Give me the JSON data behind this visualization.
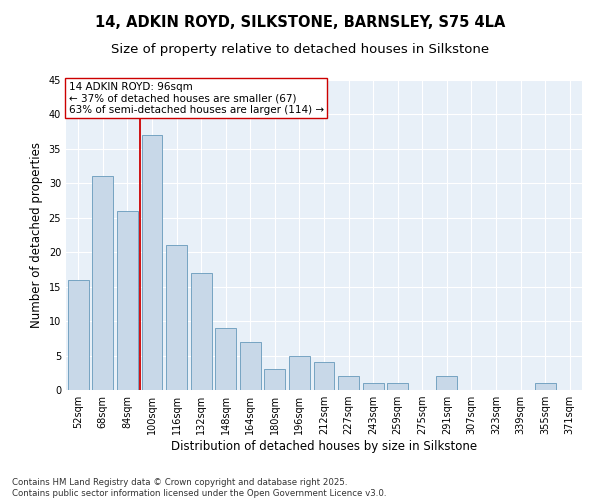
{
  "title_line1": "14, ADKIN ROYD, SILKSTONE, BARNSLEY, S75 4LA",
  "title_line2": "Size of property relative to detached houses in Silkstone",
  "xlabel": "Distribution of detached houses by size in Silkstone",
  "ylabel": "Number of detached properties",
  "categories": [
    "52sqm",
    "68sqm",
    "84sqm",
    "100sqm",
    "116sqm",
    "132sqm",
    "148sqm",
    "164sqm",
    "180sqm",
    "196sqm",
    "212sqm",
    "227sqm",
    "243sqm",
    "259sqm",
    "275sqm",
    "291sqm",
    "307sqm",
    "323sqm",
    "339sqm",
    "355sqm",
    "371sqm"
  ],
  "values": [
    16,
    31,
    26,
    37,
    21,
    17,
    9,
    7,
    3,
    5,
    4,
    2,
    1,
    1,
    0,
    2,
    0,
    0,
    0,
    1,
    0
  ],
  "bar_color": "#c8d8e8",
  "bar_edge_color": "#6699bb",
  "vline_index": 3,
  "vline_color": "#cc0000",
  "annotation_text": "14 ADKIN ROYD: 96sqm\n← 37% of detached houses are smaller (67)\n63% of semi-detached houses are larger (114) →",
  "annotation_box_color": "#ffffff",
  "annotation_box_edge": "#cc0000",
  "ylim": [
    0,
    45
  ],
  "yticks": [
    0,
    5,
    10,
    15,
    20,
    25,
    30,
    35,
    40,
    45
  ],
  "bg_color": "#e8f0f8",
  "grid_color": "#ffffff",
  "footer": "Contains HM Land Registry data © Crown copyright and database right 2025.\nContains public sector information licensed under the Open Government Licence v3.0.",
  "title_fontsize": 10.5,
  "subtitle_fontsize": 9.5,
  "tick_fontsize": 7,
  "label_fontsize": 8.5,
  "annotation_fontsize": 7.5,
  "footer_fontsize": 6.2
}
